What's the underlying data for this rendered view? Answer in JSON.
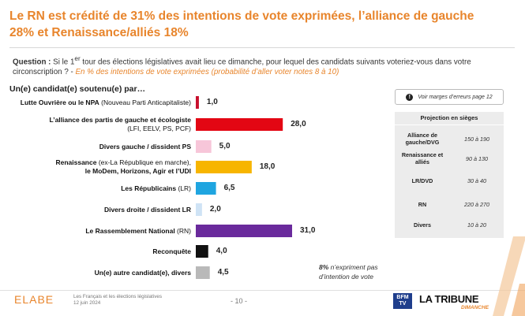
{
  "title": "Le RN est crédité de 31% des intentions de vote exprimées, l’alliance de gauche 28% et Renaissance/alliés 18%",
  "question": {
    "label": "Question :",
    "text_before_sup": " Si le 1",
    "sup": "er",
    "text_after_sup": " tour des élections législatives avait lieu ce dimanche, pour lequel des candidats suivants voteriez-vous dans votre circonscription ? -",
    "note": " En % des intentions de vote exprimées (probabilité d’aller voter notes 8 à 10)"
  },
  "subheading": "Un(e) candidat(e) soutenu(e) par…",
  "chart_data": {
    "type": "bar",
    "orientation": "horizontal",
    "title": "",
    "xlabel": "",
    "ylabel": "",
    "xlim": [
      0,
      31
    ],
    "categories": [
      {
        "bold": "Lutte Ouvrière ou le NPA",
        "detail": " (Nouveau Parti Anticapitaliste)",
        "lines": []
      },
      {
        "bold": "L’alliance des partis de gauche et écologiste",
        "detail": "",
        "lines": [
          "(LFI, EELV, PS, PCF)"
        ]
      },
      {
        "bold": "Divers gauche / dissident PS",
        "detail": "",
        "lines": []
      },
      {
        "bold": "Renaissance",
        "detail": " (ex-La République en marche),",
        "lines": [
          "le MoDem, Horizons, Agir et l’UDI"
        ]
      },
      {
        "bold": "Les Républicains",
        "detail": " (LR)",
        "lines": []
      },
      {
        "bold": "Divers droite / dissident LR",
        "detail": "",
        "lines": []
      },
      {
        "bold": "Le Rassemblement National",
        "detail": " (RN)",
        "lines": []
      },
      {
        "bold": "Reconquête",
        "detail": "",
        "lines": []
      },
      {
        "bold": "Un(e) autre candidat(e), divers",
        "detail": "",
        "lines": []
      }
    ],
    "values": [
      1.0,
      28.0,
      5.0,
      18.0,
      6.5,
      2.0,
      31.0,
      4.0,
      4.5
    ],
    "value_labels": [
      "1,0",
      "28,0",
      "5,0",
      "18,0",
      "6,5",
      "2,0",
      "31,0",
      "4,0",
      "4,5"
    ],
    "colors": [
      "#c8102e",
      "#e30613",
      "#f7c6d9",
      "#f7b500",
      "#1fa5e0",
      "#cfe3f5",
      "#6a2a9c",
      "#111111",
      "#b9b9b9"
    ]
  },
  "abstention": {
    "value": "8%",
    "text": " n’expriment pas d’intention de vote"
  },
  "margin_note": {
    "icon": "info-icon",
    "text": "Voir marges d’erreurs page 12"
  },
  "projection": {
    "title": "Projection en sièges",
    "rows": [
      {
        "party": "Alliance de gauche/DVG",
        "seats": "150 à 190"
      },
      {
        "party": "Renaissance et alliés",
        "seats": "90 à 130"
      },
      {
        "party": "LR/DVD",
        "seats": "30 à 40"
      },
      {
        "party": "RN",
        "seats": "220 à 270"
      },
      {
        "party": "Divers",
        "seats": "10 à 20"
      }
    ]
  },
  "footer": {
    "brand": "ELABE",
    "note_line1": "Les Français et les élections législatives",
    "note_line2": "12 juin 2024",
    "page": "- 10 -",
    "bfm_line1": "BFM",
    "bfm_line2": "TV",
    "partner": "LA TRIBUNE",
    "partner_sub": "DIMANCHE"
  },
  "colors": {
    "accent": "#e8852c",
    "projection_bg": "#ececec"
  }
}
